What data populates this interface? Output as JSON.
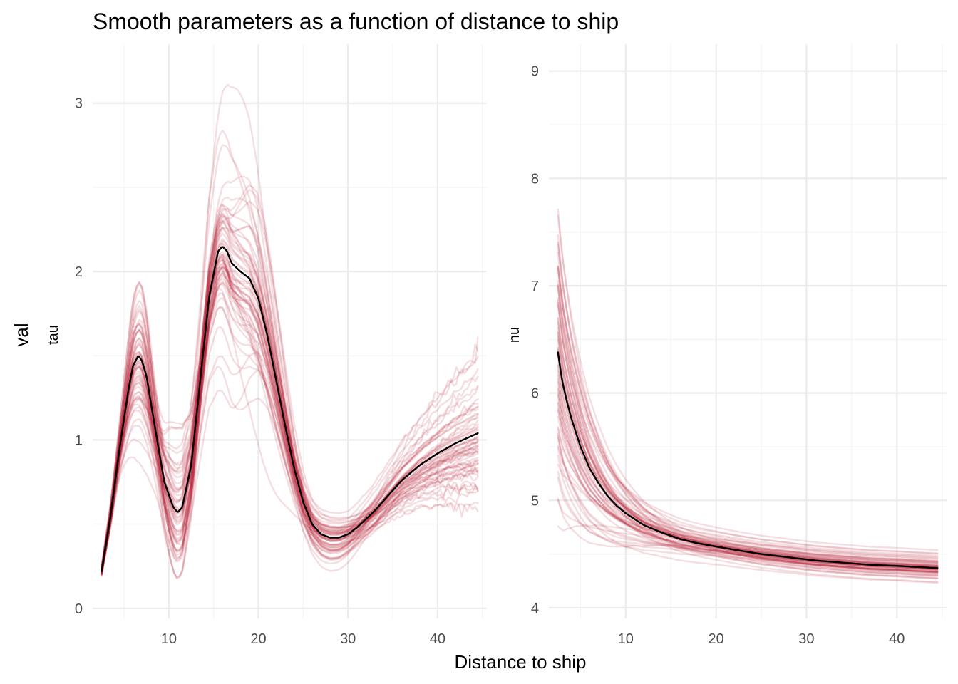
{
  "chart_data": {
    "title": "Smooth parameters as a function of distance to ship",
    "xlabel": "Distance to ship",
    "ylabel": "val",
    "colors": {
      "draws": "#b2182b",
      "mean": "#000000"
    },
    "panels": [
      {
        "type": "line",
        "ylabel": "tau",
        "xlim": [
          1.5,
          45.5
        ],
        "ylim": [
          -0.06,
          3.35
        ],
        "x_ticks": [
          10,
          20,
          30,
          40
        ],
        "y_ticks": [
          0,
          1,
          2,
          3
        ],
        "grid": true,
        "draw_count": 60,
        "mean": {
          "x": [
            2.5,
            3.5,
            4.5,
            5.5,
            6.0,
            6.6,
            7.0,
            7.5,
            8.5,
            9.5,
            10.5,
            11.0,
            11.5,
            12.5,
            13.5,
            14.5,
            15.5,
            16.0,
            16.5,
            17.0,
            18.0,
            19.0,
            20.0,
            21.0,
            22.0,
            23.0,
            24.0,
            25.0,
            26.0,
            27.0,
            28.0,
            29.0,
            30.0,
            31.0,
            32.0,
            33.0,
            34.0,
            35.0,
            36.0,
            38.0,
            40.0,
            42.0,
            44.5
          ],
          "y": [
            0.22,
            0.55,
            0.95,
            1.3,
            1.44,
            1.5,
            1.47,
            1.38,
            1.06,
            0.75,
            0.6,
            0.57,
            0.6,
            0.85,
            1.35,
            1.85,
            2.12,
            2.15,
            2.12,
            2.05,
            2.0,
            1.96,
            1.84,
            1.62,
            1.35,
            1.08,
            0.83,
            0.63,
            0.5,
            0.44,
            0.42,
            0.42,
            0.44,
            0.48,
            0.53,
            0.58,
            0.64,
            0.7,
            0.76,
            0.85,
            0.92,
            0.98,
            1.04
          ]
        }
      },
      {
        "type": "line",
        "ylabel": "nu",
        "xlim": [
          1.5,
          45.5
        ],
        "ylim": [
          3.9,
          9.25
        ],
        "x_ticks": [
          10,
          20,
          30,
          40
        ],
        "y_ticks": [
          4,
          5,
          6,
          7,
          8,
          9
        ],
        "grid": true,
        "draw_count": 60,
        "mean": {
          "x": [
            2.5,
            3.0,
            3.5,
            4.0,
            5.0,
            6.0,
            7.0,
            8.0,
            9.0,
            10.0,
            12.0,
            14.0,
            16.0,
            18.0,
            20.0,
            22.0,
            25.0,
            28.0,
            31.0,
            34.0,
            37.0,
            40.0,
            42.0,
            44.5
          ],
          "y": [
            6.38,
            6.1,
            5.92,
            5.76,
            5.5,
            5.3,
            5.16,
            5.04,
            4.95,
            4.88,
            4.77,
            4.7,
            4.64,
            4.6,
            4.57,
            4.54,
            4.5,
            4.47,
            4.44,
            4.42,
            4.4,
            4.39,
            4.38,
            4.37
          ]
        }
      }
    ]
  }
}
